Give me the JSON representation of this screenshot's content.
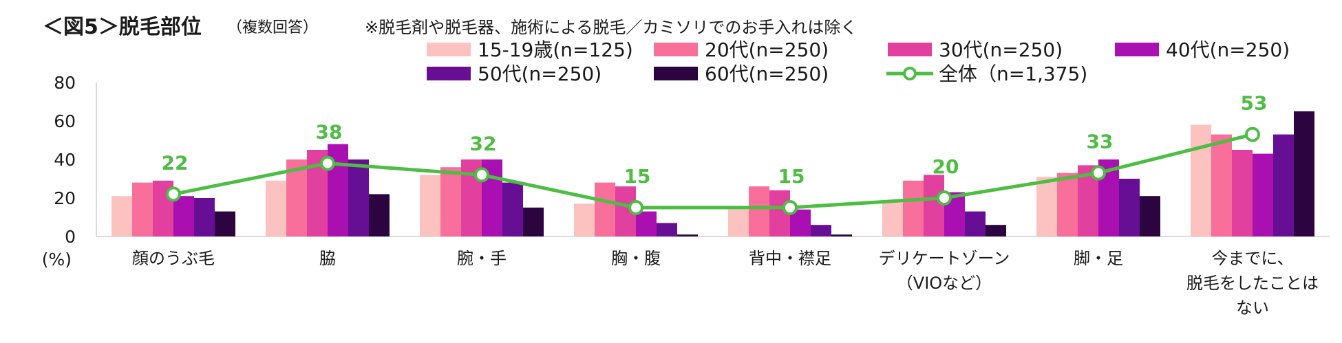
{
  "header": {
    "title": "＜図5＞脱毛部位",
    "subtitle": "（複数回答）",
    "note": "※脱毛剤や脱毛器、施術による脱毛／カミソリでのお手入れは除く"
  },
  "chart_data": {
    "type": "bar",
    "title": "＜図5＞脱毛部位",
    "ylabel": "(%)",
    "ylim": [
      0,
      80
    ],
    "yticks": [
      "0",
      "20",
      "40",
      "60",
      "80"
    ],
    "grid": false,
    "legend_position": "top",
    "categories": [
      [
        "顔のうぶ毛"
      ],
      [
        "脇"
      ],
      [
        "腕・手"
      ],
      [
        "胸・腹"
      ],
      [
        "背中・襟足"
      ],
      [
        "デリケートゾーン",
        "（VIOなど）"
      ],
      [
        "脚・足"
      ],
      [
        "今までに、",
        "脱毛をしたことは",
        "ない"
      ]
    ],
    "series": [
      {
        "name": "15-19歳(n=125)",
        "color": "#fbc2c0",
        "values": [
          21,
          29,
          32,
          17,
          14,
          18,
          31,
          58
        ]
      },
      {
        "name": "20代(n=250)",
        "color": "#f76f9a",
        "values": [
          28,
          40,
          36,
          28,
          26,
          29,
          33,
          53
        ]
      },
      {
        "name": "30代(n=250)",
        "color": "#e2409f",
        "values": [
          29,
          45,
          40,
          26,
          24,
          32,
          37,
          45
        ]
      },
      {
        "name": "40代(n=250)",
        "color": "#aa0fb2",
        "values": [
          21,
          48,
          40,
          13,
          14,
          23,
          40,
          43
        ]
      },
      {
        "name": "50代(n=250)",
        "color": "#660e94",
        "values": [
          20,
          40,
          28,
          7,
          6,
          13,
          30,
          53
        ]
      },
      {
        "name": "60代(n=250)",
        "color": "#2b0440",
        "values": [
          13,
          22,
          15,
          1,
          1,
          6,
          21,
          65
        ]
      }
    ],
    "line_series": {
      "name": "全体（n=1,375)",
      "color": "#4dbd43",
      "values": [
        22,
        38,
        32,
        15,
        15,
        20,
        33,
        53
      ],
      "labels": [
        "22",
        "38",
        "32",
        "15",
        "15",
        "20",
        "33",
        "53"
      ]
    }
  }
}
